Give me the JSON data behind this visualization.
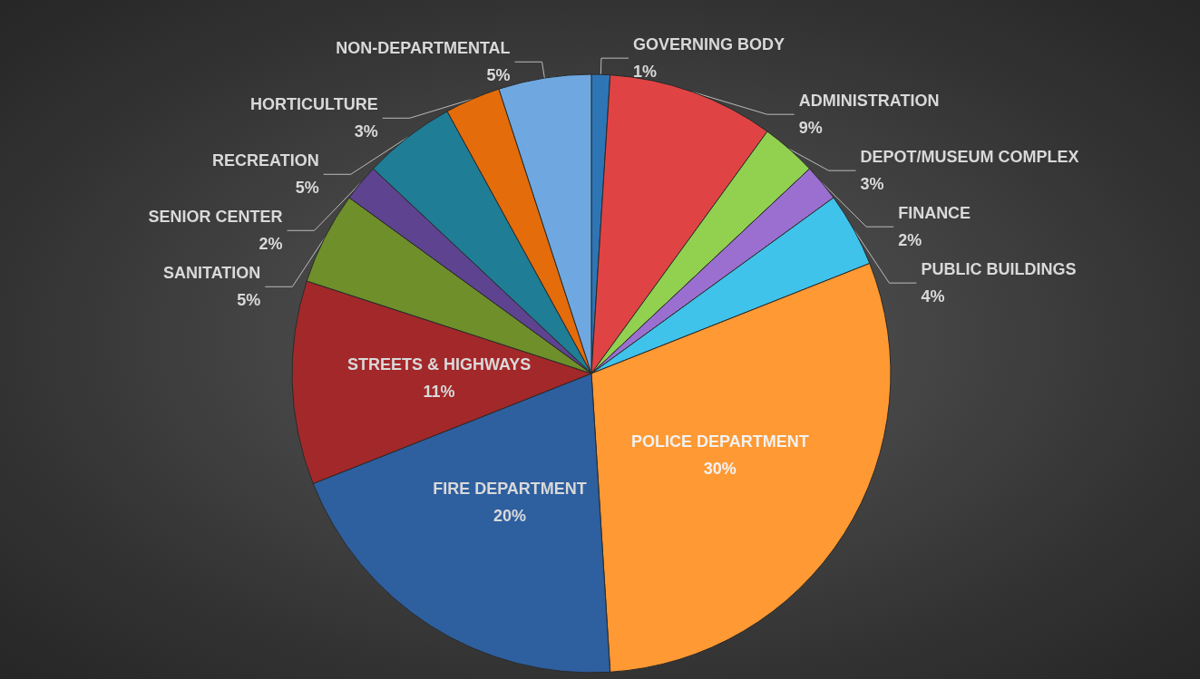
{
  "chart_data": {
    "type": "pie",
    "categories": [
      "GOVERNING BODY",
      "ADMINISTRATION",
      "DEPOT/MUSEUM COMPLEX",
      "FINANCE",
      "PUBLIC BUILDINGS",
      "POLICE DEPARTMENT",
      "FIRE DEPARTMENT",
      "STREETS & HIGHWAYS",
      "SANITATION",
      "SENIOR CENTER",
      "RECREATION",
      "HORTICULTURE",
      "NON-DEPARTMENTAL"
    ],
    "values": [
      1,
      9,
      3,
      2,
      4,
      30,
      20,
      11,
      5,
      2,
      5,
      3,
      5
    ],
    "value_labels": [
      "1%",
      "9%",
      "3%",
      "2%",
      "4%",
      "30%",
      "20%",
      "11%",
      "5%",
      "2%",
      "5%",
      "3%",
      "5%"
    ],
    "colors": [
      "#2e75b6",
      "#e04343",
      "#92d050",
      "#9b6fd0",
      "#3fc3ea",
      "#ff9933",
      "#2e5f9f",
      "#a3282a",
      "#6e8f2a",
      "#5d4390",
      "#1f7d96",
      "#e46c0a",
      "#6fa8e0"
    ],
    "legend": false
  }
}
